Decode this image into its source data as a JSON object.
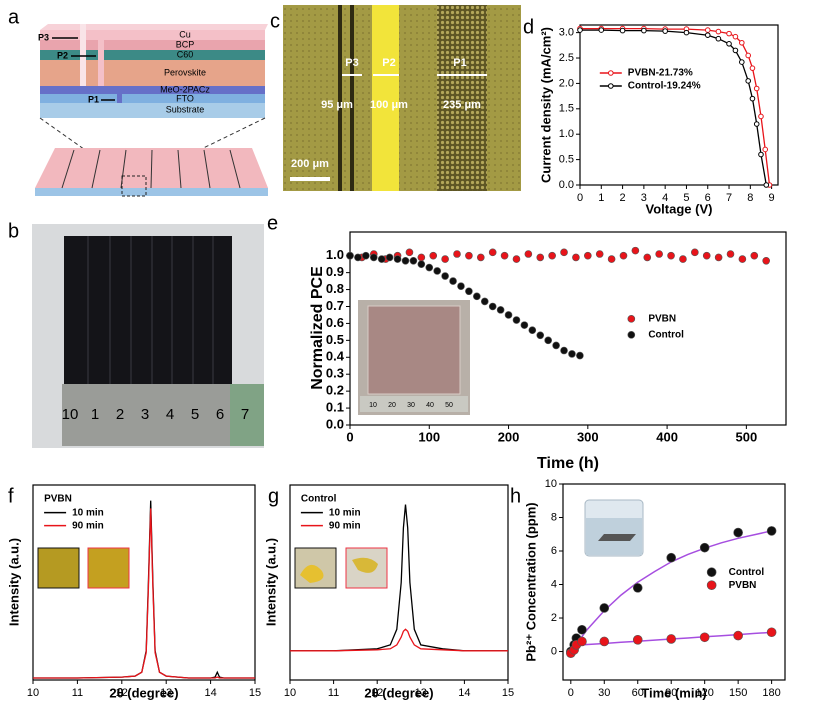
{
  "figure": {
    "panel_labels": [
      "a",
      "b",
      "c",
      "d",
      "e",
      "f",
      "g",
      "h"
    ],
    "schematic": {
      "scribes": [
        "P3",
        "P2",
        "P1"
      ],
      "layers": [
        "Cu",
        "BCP",
        "C60",
        "Perovskite",
        "MeO-2PACz",
        "FTO",
        "Substrate"
      ]
    },
    "micrograph": {
      "scribes": [
        "P3",
        "P2",
        "P1"
      ],
      "widths": [
        "95 μm",
        "100 μm",
        "235 μm"
      ],
      "scale_bar": "200 μm"
    },
    "photo_ruler": [
      "10",
      "1",
      "2",
      "3",
      "4",
      "5",
      "6",
      "7"
    ],
    "inset_ruler": [
      "10",
      "20",
      "30",
      "40",
      "50"
    ]
  },
  "chart_data": [
    {
      "type": "line",
      "markers": "open",
      "xlabel": "Voltage (V)",
      "ylabel": "Current density (mA/cm²)",
      "xlim": [
        0,
        9.3
      ],
      "xticks": [
        0,
        1,
        2,
        3,
        4,
        5,
        6,
        7,
        8,
        9
      ],
      "ylim": [
        0,
        3.15
      ],
      "yticks": [
        {
          "value": 0,
          "label": "0.0"
        },
        0.5,
        {
          "value": 1,
          "label": "1.0"
        },
        1.5,
        {
          "value": 2,
          "label": "2.0"
        },
        2.5,
        {
          "value": 3,
          "label": "3.0"
        }
      ],
      "legend": "center-left",
      "series": [
        {
          "name": "PVBN-21.73%",
          "color": "#e8141a",
          "x": [
            0,
            1,
            2,
            3,
            4,
            5,
            6,
            6.5,
            7,
            7.3,
            7.6,
            7.9,
            8.1,
            8.3,
            8.5,
            8.7,
            8.9
          ],
          "values": [
            3.08,
            3.08,
            3.08,
            3.08,
            3.07,
            3.07,
            3.05,
            3.02,
            2.98,
            2.92,
            2.8,
            2.55,
            2.3,
            1.9,
            1.35,
            0.7,
            0
          ]
        },
        {
          "name": "Control-19.24%",
          "color": "#000000",
          "x": [
            0,
            1,
            2,
            3,
            4,
            5,
            6,
            6.5,
            7,
            7.3,
            7.6,
            7.9,
            8.1,
            8.3,
            8.5,
            8.75
          ],
          "values": [
            3.05,
            3.05,
            3.04,
            3.04,
            3.03,
            3.0,
            2.95,
            2.88,
            2.78,
            2.65,
            2.42,
            2.05,
            1.7,
            1.2,
            0.6,
            0
          ]
        }
      ]
    },
    {
      "type": "scatter",
      "markers": "filled",
      "xlabel": "Time (h)",
      "ylabel": "Normalized PCE",
      "xlim": [
        0,
        550
      ],
      "xticks": [
        0,
        100,
        200,
        300,
        400,
        500
      ],
      "ylim": [
        0,
        1.14
      ],
      "yticks": [
        {
          "value": 0,
          "label": "0.0"
        },
        0.1,
        0.2,
        0.3,
        0.4,
        0.5,
        0.6,
        0.7,
        0.8,
        0.9,
        {
          "value": 1,
          "label": "1.0"
        }
      ],
      "legend": "center-right",
      "series": [
        {
          "name": "PVBN",
          "color": "#e8141a",
          "x": [
            0,
            15,
            30,
            45,
            60,
            75,
            90,
            105,
            120,
            135,
            150,
            165,
            180,
            195,
            210,
            225,
            240,
            255,
            270,
            285,
            300,
            315,
            330,
            345,
            360,
            375,
            390,
            405,
            420,
            435,
            450,
            465,
            480,
            495,
            510,
            525
          ],
          "values": [
            1.0,
            0.99,
            1.01,
            0.98,
            1.0,
            1.02,
            0.99,
            1.0,
            0.98,
            1.01,
            1.0,
            0.99,
            1.02,
            1.0,
            0.98,
            1.01,
            0.99,
            1.0,
            1.02,
            0.99,
            1.0,
            1.01,
            0.98,
            1.0,
            1.03,
            0.99,
            1.01,
            1.0,
            0.98,
            1.02,
            1.0,
            0.99,
            1.01,
            0.98,
            1.0,
            0.97
          ]
        },
        {
          "name": "Control",
          "color": "#111111",
          "x": [
            0,
            10,
            20,
            30,
            40,
            50,
            60,
            70,
            80,
            90,
            100,
            110,
            120,
            130,
            140,
            150,
            160,
            170,
            180,
            190,
            200,
            210,
            220,
            230,
            240,
            250,
            260,
            270,
            280,
            290
          ],
          "values": [
            1.0,
            0.99,
            1.0,
            0.99,
            0.98,
            0.99,
            0.98,
            0.97,
            0.97,
            0.95,
            0.93,
            0.91,
            0.88,
            0.85,
            0.82,
            0.79,
            0.76,
            0.73,
            0.7,
            0.68,
            0.65,
            0.62,
            0.59,
            0.56,
            0.53,
            0.5,
            0.47,
            0.44,
            0.42,
            0.41
          ]
        }
      ]
    },
    {
      "type": "line",
      "xlabel": "2θ (degree)",
      "ylabel": "Intensity (a.u.)",
      "legend_title": "PVBN",
      "legend": "upper-left",
      "xlim": [
        10,
        15
      ],
      "xticks": [
        10,
        11,
        12,
        13,
        14,
        15
      ],
      "ylim": [
        0,
        100
      ],
      "series": [
        {
          "name": "10 min",
          "color": "#000000",
          "x": [
            10,
            11,
            12,
            12.3,
            12.45,
            12.55,
            12.6,
            12.65,
            12.7,
            12.75,
            12.85,
            13,
            13.5,
            14,
            14.1,
            14.15,
            14.2,
            14.3,
            15
          ],
          "values": [
            1,
            1,
            1.5,
            2,
            4,
            15,
            50,
            92,
            50,
            15,
            4,
            2,
            1,
            1,
            1.5,
            4,
            1.5,
            1,
            1
          ]
        },
        {
          "name": "90 min",
          "color": "#e8141a",
          "x": [
            10,
            11,
            12,
            12.3,
            12.45,
            12.55,
            12.6,
            12.65,
            12.7,
            12.75,
            12.85,
            13,
            13.5,
            14,
            14.1,
            14.15,
            14.2,
            14.3,
            15
          ],
          "values": [
            1,
            1,
            1.5,
            2,
            4,
            14,
            47,
            88,
            47,
            14,
            4,
            2,
            1,
            1,
            1,
            1.5,
            1,
            1,
            1
          ]
        }
      ]
    },
    {
      "type": "line",
      "xlabel": "2θ (degree)",
      "ylabel": "Intensity (a.u.)",
      "legend_title": "Control",
      "legend": "upper-left",
      "xlim": [
        10,
        15
      ],
      "xticks": [
        10,
        11,
        12,
        13,
        14,
        15
      ],
      "ylim": [
        0,
        100
      ],
      "series": [
        {
          "name": "10 min",
          "color": "#000000",
          "x": [
            10,
            11,
            12,
            12.3,
            12.45,
            12.55,
            12.6,
            12.65,
            12.7,
            12.75,
            12.85,
            13,
            13.5,
            14,
            15
          ],
          "values": [
            15,
            15,
            16,
            18,
            26,
            50,
            78,
            90,
            78,
            50,
            26,
            18,
            16,
            15,
            15
          ]
        },
        {
          "name": "90 min",
          "color": "#e8141a",
          "x": [
            10,
            11,
            12,
            12.3,
            12.45,
            12.55,
            12.6,
            12.65,
            12.7,
            12.75,
            12.85,
            13,
            13.5,
            14,
            15
          ],
          "values": [
            15,
            15,
            15.5,
            16,
            18,
            22,
            25,
            26,
            25,
            22,
            18,
            16,
            15.5,
            15,
            15
          ]
        }
      ]
    },
    {
      "type": "scatter",
      "markers": "filled",
      "xlabel": "Time (min)",
      "ylabel": "Pb²⁺ Concentration (ppm)",
      "legend": "center-right",
      "xlim": [
        -7,
        192
      ],
      "xticks": [
        0,
        30,
        60,
        90,
        120,
        150,
        180
      ],
      "ylim": [
        -1.7,
        10
      ],
      "yticks": [
        0,
        2,
        4,
        6,
        8,
        10
      ],
      "series": [
        {
          "name": "Control",
          "color": "#111111",
          "x": [
            0,
            3,
            5,
            10,
            30,
            60,
            90,
            120,
            150,
            180
          ],
          "values": [
            0,
            0.4,
            0.8,
            1.3,
            2.6,
            3.8,
            5.6,
            6.2,
            7.1,
            7.2
          ]
        },
        {
          "name": "PVBN",
          "color": "#e8141a",
          "x": [
            0,
            3,
            5,
            10,
            30,
            60,
            90,
            120,
            150,
            180
          ],
          "values": [
            -0.1,
            0.1,
            0.4,
            0.6,
            0.6,
            0.7,
            0.75,
            0.85,
            0.95,
            1.15
          ]
        }
      ],
      "fits": [
        {
          "color": "#a64ee0",
          "x": [
            0,
            15,
            30,
            45,
            60,
            75,
            90,
            105,
            120,
            135,
            150,
            165,
            180
          ],
          "values": [
            0,
            1.33,
            2.44,
            3.37,
            4.13,
            4.77,
            5.35,
            5.8,
            6.17,
            6.49,
            6.76,
            6.98,
            7.2
          ]
        },
        {
          "color": "#a64ee0",
          "x": [
            0,
            15,
            30,
            45,
            60,
            75,
            90,
            105,
            120,
            135,
            150,
            165,
            180
          ],
          "values": [
            0.35,
            0.42,
            0.48,
            0.55,
            0.61,
            0.68,
            0.75,
            0.81,
            0.88,
            0.94,
            1.01,
            1.08,
            1.14
          ]
        }
      ]
    }
  ]
}
